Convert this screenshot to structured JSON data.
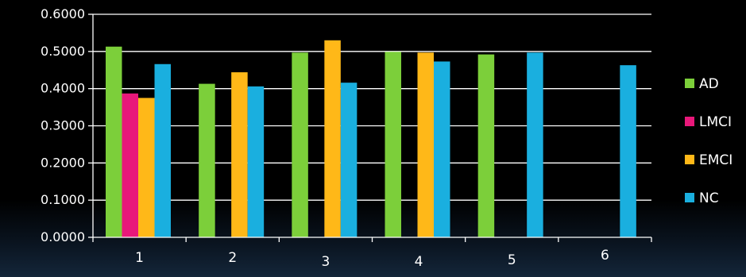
{
  "chart_data": {
    "type": "bar",
    "categories": [
      "1",
      "2",
      "3",
      "4",
      "5",
      "6"
    ],
    "series": [
      {
        "name": "AD",
        "color": "#7ccf3a",
        "values": [
          0.513,
          0.413,
          0.497,
          0.499,
          0.492,
          null
        ]
      },
      {
        "name": "LMCI",
        "color": "#e8187a",
        "values": [
          0.387,
          null,
          null,
          null,
          null,
          null
        ]
      },
      {
        "name": "EMCI",
        "color": "#ffb818",
        "values": [
          0.375,
          0.444,
          0.53,
          0.497,
          null,
          null
        ]
      },
      {
        "name": "NC",
        "color": "#1aafdf",
        "values": [
          0.466,
          0.406,
          0.416,
          0.473,
          0.497,
          0.463
        ]
      }
    ],
    "y_ticks": [
      "0.0000",
      "0.1000",
      "0.2000",
      "0.3000",
      "0.4000",
      "0.5000",
      "0.6000"
    ],
    "ylim": [
      0,
      0.6
    ],
    "grid": true,
    "legend": "right",
    "title": "",
    "xlabel": "",
    "ylabel": ""
  }
}
